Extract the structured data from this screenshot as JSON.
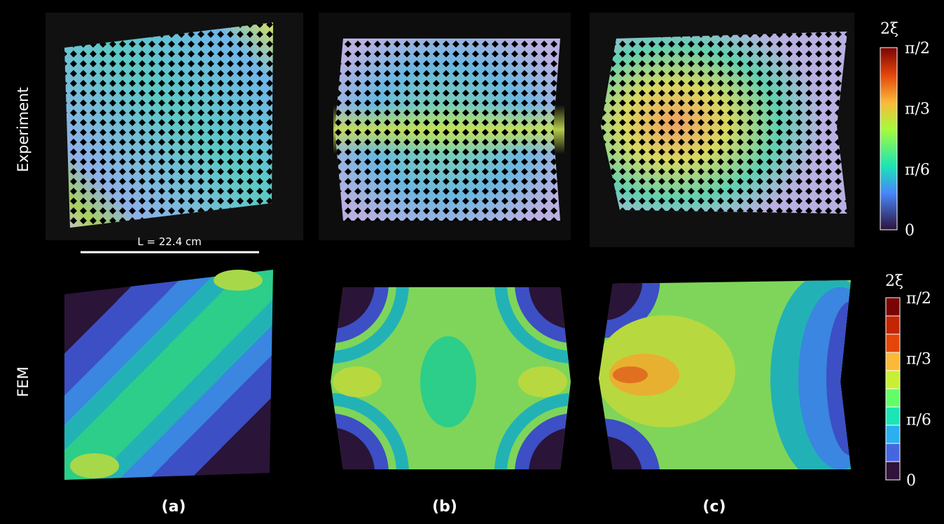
{
  "row_labels": [
    "Experiment",
    "FEM"
  ],
  "scale_bar": "L = 22.4 cm",
  "colorbars": [
    {
      "title": "2ξ",
      "ticks": [
        "π/2",
        "π/3",
        "π/6",
        "0"
      ]
    },
    {
      "title": "2ξ",
      "ticks": [
        "π/2",
        "π/3",
        "π/6",
        "0"
      ]
    }
  ],
  "panel_labels": [
    "(a)",
    "(b)",
    "(c)"
  ]
}
